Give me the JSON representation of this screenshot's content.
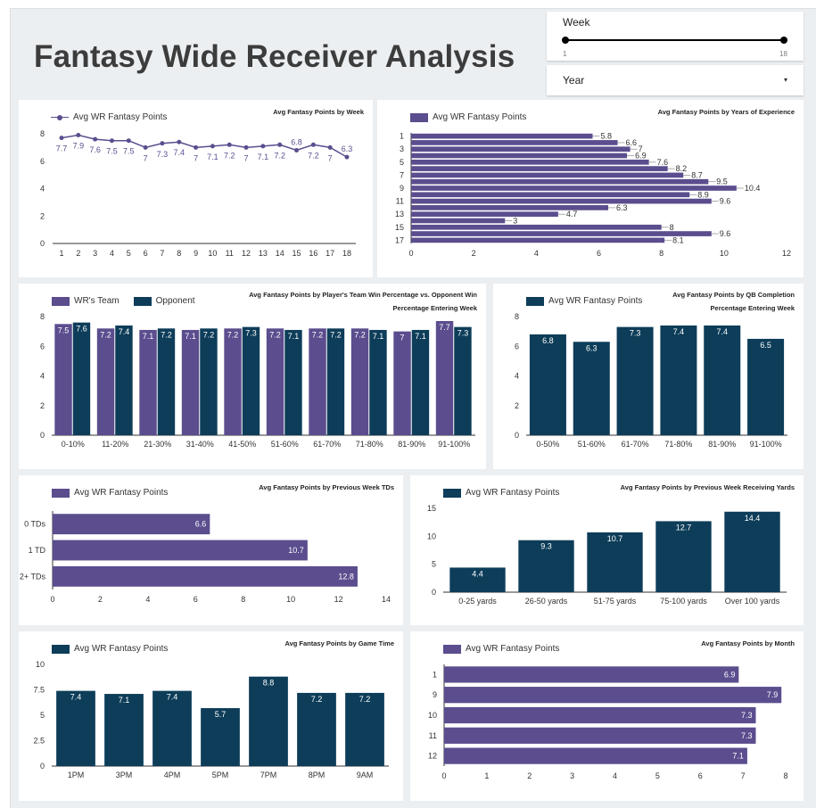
{
  "header": {
    "title": "Fantasy Wide Receiver Analysis"
  },
  "controls": {
    "week": {
      "label": "Week",
      "min": "1",
      "max": "18"
    },
    "year": {
      "label": "Year",
      "caret": "▾"
    }
  },
  "colors": {
    "purple": "#5b4d8e",
    "navy": "#0d3d59",
    "axis": "#333333"
  },
  "charts": {
    "week": {
      "title": "Avg Fantasy Points by Week",
      "legend": "Avg WR Fantasy Points",
      "chart_data": {
        "type": "line",
        "categories": [
          "1",
          "2",
          "3",
          "4",
          "5",
          "6",
          "7",
          "8",
          "9",
          "10",
          "11",
          "12",
          "13",
          "14",
          "15",
          "16",
          "17",
          "18"
        ],
        "series": [
          {
            "name": "Avg WR Fantasy Points",
            "values": [
              7.7,
              7.9,
              7.6,
              7.5,
              7.5,
              7,
              7.3,
              7.4,
              7,
              7.1,
              7.2,
              7,
              7.1,
              7.2,
              6.8,
              7.2,
              7,
              6.3
            ]
          }
        ],
        "ylim": [
          0,
          8
        ],
        "yticks": [
          0,
          2,
          4,
          6,
          8
        ]
      }
    },
    "experience": {
      "title": "Avg Fantasy Points by Years of Experience",
      "legend": "Avg WR Fantasy Points",
      "chart_data": {
        "type": "bar",
        "orientation": "horizontal",
        "categories": [
          "1",
          "2",
          "3",
          "4",
          "5",
          "6",
          "7",
          "8",
          "9",
          "10",
          "11",
          "12",
          "13",
          "14",
          "15",
          "16",
          "17"
        ],
        "tick_labels": [
          "1",
          "3",
          "5",
          "7",
          "9",
          "11",
          "13",
          "15",
          "17"
        ],
        "values": [
          5.8,
          6.6,
          7,
          6.9,
          7.6,
          8.2,
          8.7,
          9.5,
          10.4,
          8.9,
          9.6,
          6.3,
          4.7,
          3,
          8,
          9.6,
          8.1
        ],
        "xlim": [
          0,
          12
        ],
        "xticks": [
          0,
          2,
          4,
          6,
          8,
          10,
          12
        ]
      }
    },
    "winpct": {
      "title": "Avg Fantasy Points by Player's Team Win Percentage vs. Opponent Win Percentage Entering Week",
      "title_lines": [
        "Avg Fantasy Points by Player's Team Win Percentage vs. Opponent Win",
        "Percentage Entering Week"
      ],
      "chart_data": {
        "type": "bar",
        "categories": [
          "0-10%",
          "11-20%",
          "21-30%",
          "31-40%",
          "41-50%",
          "51-60%",
          "61-70%",
          "71-80%",
          "81-90%",
          "91-100%"
        ],
        "series": [
          {
            "name": "WR's Team",
            "values": [
              7.5,
              7.2,
              7.1,
              7.1,
              7.2,
              7.2,
              7.2,
              7.2,
              7,
              7.7
            ]
          },
          {
            "name": "Opponent",
            "values": [
              7.6,
              7.4,
              7.2,
              7.2,
              7.3,
              7.1,
              7.2,
              7.1,
              7.1,
              7.3
            ]
          }
        ],
        "ylim": [
          0,
          8
        ],
        "yticks": [
          0,
          2,
          4,
          6,
          8
        ]
      }
    },
    "qb": {
      "title": "Avg Fantasy Points by QB Completion Percentage Entering Week",
      "title_lines": [
        "Avg Fantasy Points by QB Completion",
        "Percentage Entering Week"
      ],
      "legend": "Avg WR Fantasy Points",
      "chart_data": {
        "type": "bar",
        "categories": [
          "0-50%",
          "51-60%",
          "61-70%",
          "71-80%",
          "81-90%",
          "91-100%"
        ],
        "values": [
          6.8,
          6.3,
          7.3,
          7.4,
          7.4,
          6.5
        ],
        "ylim": [
          0,
          8
        ],
        "yticks": [
          0,
          2,
          4,
          6,
          8
        ]
      }
    },
    "tds": {
      "title": "Avg Fantasy Points by Previous Week TDs",
      "legend": "Avg WR Fantasy Points",
      "chart_data": {
        "type": "bar",
        "orientation": "horizontal",
        "categories": [
          "0 TDs",
          "1 TD",
          "2+ TDs"
        ],
        "values": [
          6.6,
          10.7,
          12.8
        ],
        "xlim": [
          0,
          14
        ],
        "xticks": [
          0,
          2,
          4,
          6,
          8,
          10,
          12,
          14
        ]
      }
    },
    "yards": {
      "title": "Avg Fantasy Points by Previous Week Receiving Yards",
      "legend": "Avg WR Fantasy Points",
      "chart_data": {
        "type": "bar",
        "categories": [
          "0-25 yards",
          "26-50 yards",
          "51-75 yards",
          "75-100 yards",
          "Over 100 yards"
        ],
        "values": [
          4.4,
          9.3,
          10.7,
          12.7,
          14.4
        ],
        "ylim": [
          0,
          15
        ],
        "yticks": [
          0,
          5,
          10,
          15
        ]
      }
    },
    "gametime": {
      "title": "Avg Fantasy Points by Game Time",
      "legend": "Avg WR Fantasy Points",
      "chart_data": {
        "type": "bar",
        "categories": [
          "1PM",
          "3PM",
          "4PM",
          "5PM",
          "7PM",
          "8PM",
          "9AM"
        ],
        "values": [
          7.4,
          7.1,
          7.4,
          5.7,
          8.8,
          7.2,
          7.2
        ],
        "ylim": [
          0,
          10
        ],
        "yticks": [
          0,
          2.5,
          5,
          7.5,
          10
        ]
      }
    },
    "month": {
      "title": "Avg Fantasy Points by Month",
      "legend": "Avg WR Fantasy Points",
      "chart_data": {
        "type": "bar",
        "orientation": "horizontal",
        "categories": [
          "1",
          "9",
          "10",
          "11",
          "12"
        ],
        "values": [
          6.9,
          7.9,
          7.3,
          7.3,
          7.1
        ],
        "xlim": [
          0,
          8
        ],
        "xticks": [
          0,
          1,
          2,
          3,
          4,
          5,
          6,
          7,
          8
        ]
      }
    }
  }
}
